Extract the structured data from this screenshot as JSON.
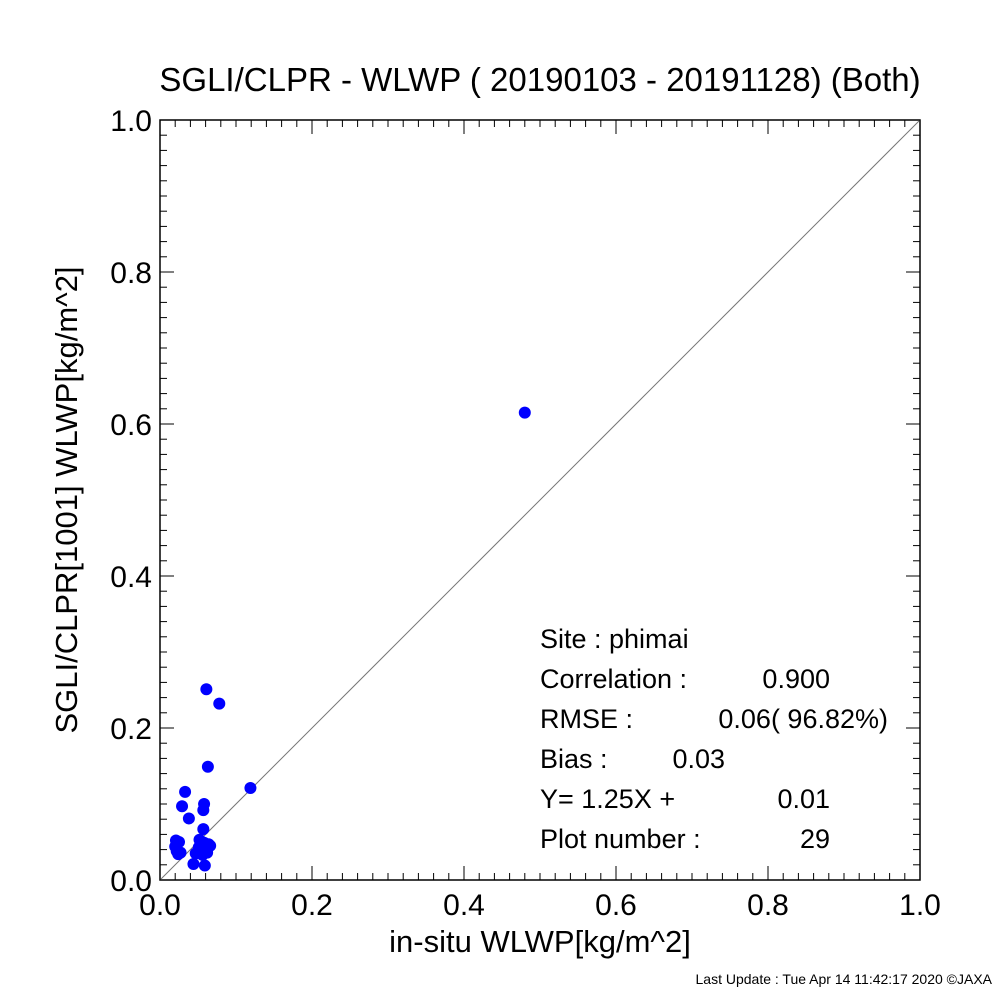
{
  "chart_data": {
    "type": "scatter",
    "title": "SGLI/CLPR - WLWP ( 20190103 - 20191128) (Both)",
    "xlabel": "in-situ WLWP[kg/m^2]",
    "ylabel": "SGLI/CLPR[1001]    WLWP[kg/m^2]",
    "xlim": [
      0.0,
      1.0
    ],
    "ylim": [
      0.0,
      1.0
    ],
    "xticks": [
      "0.0",
      "0.2",
      "0.4",
      "0.6",
      "0.8",
      "1.0"
    ],
    "yticks": [
      "0.0",
      "0.2",
      "0.4",
      "0.6",
      "0.8",
      "1.0"
    ],
    "point_color": "#0000ff",
    "reference_line": "y = x",
    "grid": false,
    "points": [
      {
        "x": 0.48,
        "y": 0.615
      },
      {
        "x": 0.061,
        "y": 0.251
      },
      {
        "x": 0.078,
        "y": 0.232
      },
      {
        "x": 0.063,
        "y": 0.149
      },
      {
        "x": 0.119,
        "y": 0.121
      },
      {
        "x": 0.033,
        "y": 0.116
      },
      {
        "x": 0.029,
        "y": 0.097
      },
      {
        "x": 0.058,
        "y": 0.1
      },
      {
        "x": 0.057,
        "y": 0.092
      },
      {
        "x": 0.038,
        "y": 0.081
      },
      {
        "x": 0.057,
        "y": 0.067
      },
      {
        "x": 0.021,
        "y": 0.052
      },
      {
        "x": 0.025,
        "y": 0.05
      },
      {
        "x": 0.052,
        "y": 0.053
      },
      {
        "x": 0.058,
        "y": 0.049
      },
      {
        "x": 0.064,
        "y": 0.047
      },
      {
        "x": 0.02,
        "y": 0.044
      },
      {
        "x": 0.051,
        "y": 0.043
      },
      {
        "x": 0.06,
        "y": 0.04
      },
      {
        "x": 0.066,
        "y": 0.045
      },
      {
        "x": 0.022,
        "y": 0.038
      },
      {
        "x": 0.027,
        "y": 0.036
      },
      {
        "x": 0.024,
        "y": 0.034
      },
      {
        "x": 0.055,
        "y": 0.039
      },
      {
        "x": 0.062,
        "y": 0.036
      },
      {
        "x": 0.047,
        "y": 0.035
      },
      {
        "x": 0.056,
        "y": 0.033
      },
      {
        "x": 0.044,
        "y": 0.021
      },
      {
        "x": 0.059,
        "y": 0.019
      }
    ],
    "stats": [
      {
        "label": "Site : phimai",
        "value": ""
      },
      {
        "label": "Correlation :",
        "value": "0.900"
      },
      {
        "label": "RMSE :",
        "value": "0.06( 96.82%)"
      },
      {
        "label": "Bias :",
        "value": "0.03"
      },
      {
        "label": "Y=    1.25X +",
        "value": "0.01"
      },
      {
        "label": "Plot number :",
        "value": "29"
      }
    ]
  },
  "footer": "Last Update : Tue Apr 14 11:42:17 2020  ©JAXA"
}
